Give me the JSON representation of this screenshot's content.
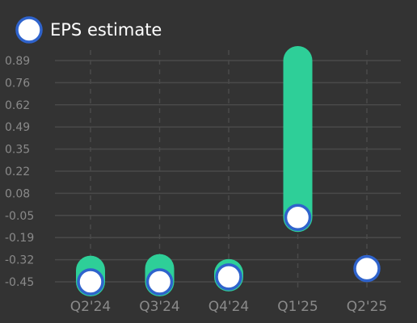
{
  "colors": {
    "background": "#333333",
    "grid": "#4a4a4a",
    "bar": "#2ecf98",
    "marker_fill": "#ffffff",
    "marker_stroke": "#2f63cc",
    "tick_text": "#8a8a8a",
    "legend_text": "#ffffff"
  },
  "legend": {
    "label": "EPS estimate",
    "position": "top-left",
    "icon": "circle-marker-icon"
  },
  "chart_data": {
    "type": "bar",
    "title": "",
    "xlabel": "",
    "ylabel": "",
    "categories": [
      "Q2'24",
      "Q3'24",
      "Q4'24",
      "Q1'25",
      "Q2'25"
    ],
    "y_ticks": [
      "0.89",
      "0.76",
      "0.62",
      "0.49",
      "0.35",
      "0.22",
      "0.08",
      "-0.05",
      "-0.19",
      "-0.32",
      "-0.45"
    ],
    "ylim": [
      -0.45,
      0.89
    ],
    "grid": true,
    "series": [
      {
        "name": "",
        "kind": "range-bar",
        "values": [
          {
            "from": -0.45,
            "to": -0.38
          },
          {
            "from": -0.45,
            "to": -0.37
          },
          {
            "from": -0.42,
            "to": -0.4
          },
          {
            "from": -0.06,
            "to": 0.89
          },
          null
        ]
      },
      {
        "name": "EPS estimate",
        "kind": "marker",
        "values": [
          -0.45,
          -0.45,
          -0.42,
          -0.06,
          -0.37
        ]
      }
    ]
  }
}
